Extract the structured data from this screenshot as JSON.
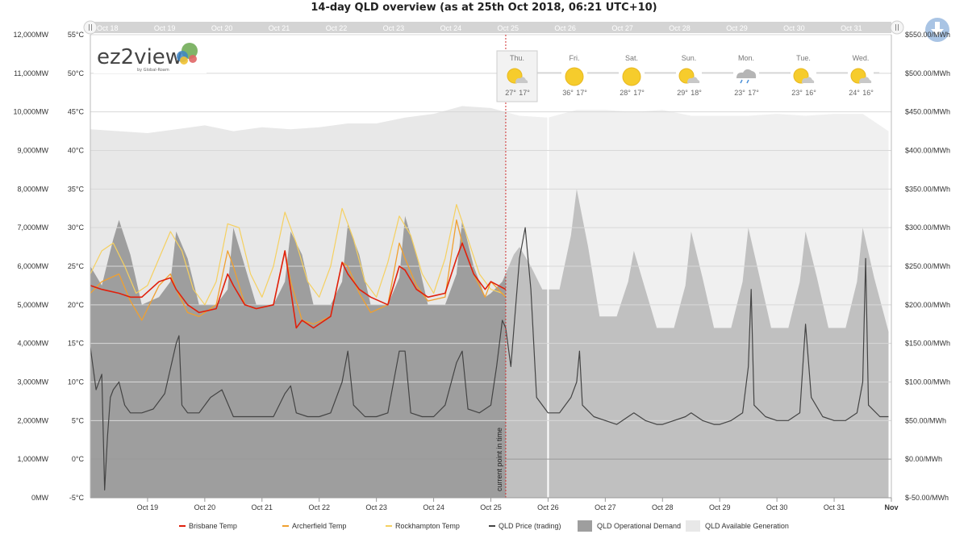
{
  "title": "14-day QLD overview (as at 25th Oct 2018, 06:21 UTC+10)",
  "logo": {
    "text": "ez2view",
    "sub": "by Global-Roam"
  },
  "marker_label": "current point in time",
  "colors": {
    "brisbane": "#e0200c",
    "archerfield": "#f0a030",
    "rockhampton": "#f5d060",
    "price": "#444444",
    "demand": "#9e9e9e",
    "available": "#e8e8e8"
  },
  "weather": [
    {
      "day": "Thu.",
      "icon": "sun-cloud-icon",
      "hi": "27°",
      "lo": "17°",
      "highlighted": true
    },
    {
      "day": "Fri.",
      "icon": "sun-icon",
      "hi": "36°",
      "lo": "17°"
    },
    {
      "day": "Sat.",
      "icon": "sun-icon",
      "hi": "28°",
      "lo": "17°"
    },
    {
      "day": "Sun.",
      "icon": "sun-cloud-icon",
      "hi": "29°",
      "lo": "18°"
    },
    {
      "day": "Mon.",
      "icon": "rain-cloud-icon",
      "hi": "23°",
      "lo": "17°"
    },
    {
      "day": "Tue.",
      "icon": "sun-cloud-icon",
      "hi": "23°",
      "lo": "16°"
    },
    {
      "day": "Wed.",
      "icon": "sun-cloud-icon",
      "hi": "24°",
      "lo": "16°"
    }
  ],
  "chart_data": {
    "type": "area",
    "title": "14-day QLD overview (as at 25th Oct 2018, 06:21 UTC+10)",
    "x_unit": "days (Oct 2018)",
    "x_range": [
      "Oct 18",
      "Nov 1"
    ],
    "x_ticks": [
      "Oct 19",
      "Oct 20",
      "Oct 21",
      "Oct 22",
      "Oct 23",
      "Oct 24",
      "Oct 25",
      "Oct 26",
      "Oct 27",
      "Oct 28",
      "Oct 29",
      "Oct 30",
      "Oct 31",
      "Nov"
    ],
    "nav_labels": [
      "Oct 18",
      "Oct 19",
      "Oct 20",
      "Oct 21",
      "Oct 22",
      "Oct 23",
      "Oct 24",
      "Oct 25",
      "Oct 26",
      "Oct 27",
      "Oct 28",
      "Oct 29",
      "Oct 30",
      "Oct 31"
    ],
    "axes": {
      "mw": {
        "range": [
          0,
          12000
        ],
        "ticks": [
          "0MW",
          "1,000MW",
          "2,000MW",
          "3,000MW",
          "4,000MW",
          "5,000MW",
          "6,000MW",
          "7,000MW",
          "8,000MW",
          "9,000MW",
          "10,000MW",
          "11,000MW",
          "12,000MW"
        ]
      },
      "temp": {
        "range": [
          -5,
          55
        ],
        "ticks": [
          "-5°C",
          "0°C",
          "5°C",
          "10°C",
          "15°C",
          "20°C",
          "25°C",
          "30°C",
          "35°C",
          "40°C",
          "45°C",
          "50°C",
          "55°C"
        ]
      },
      "price": {
        "range": [
          -50,
          550
        ],
        "ticks": [
          "$-50.00/MWh",
          "$0.00/MWh",
          "$50.00/MWh",
          "$100.00/MWh",
          "$150.00/MWh",
          "$200.00/MWh",
          "$250.00/MWh",
          "$300.00/MWh",
          "$350.00/MWh",
          "$400.00/MWh",
          "$450.00/MWh",
          "$500.00/MWh",
          "$550.00/MWh"
        ]
      }
    },
    "current_time_day": 25.26,
    "legend": [
      {
        "name": "Brisbane Temp",
        "key": "brisbane",
        "kind": "line"
      },
      {
        "name": "Archerfield Temp",
        "key": "archerfield",
        "kind": "line"
      },
      {
        "name": "Rockhampton Temp",
        "key": "rockhampton",
        "kind": "line"
      },
      {
        "name": "QLD Price (trading)",
        "key": "price",
        "kind": "line"
      },
      {
        "name": "QLD Operational Demand",
        "key": "demand",
        "kind": "box"
      },
      {
        "name": "QLD Available Generation",
        "key": "available",
        "kind": "box"
      }
    ],
    "series": [
      {
        "name": "QLD Available Generation",
        "unit": "MW",
        "x": [
          18.0,
          18.5,
          19.0,
          19.5,
          20.0,
          20.5,
          21.0,
          21.5,
          22.0,
          22.5,
          23.0,
          23.5,
          24.0,
          24.5,
          25.0,
          25.5,
          26.0,
          26.5,
          27.0,
          27.5,
          28.0,
          28.5,
          29.0,
          29.5,
          30.0,
          30.5,
          31.0,
          31.5,
          31.95
        ],
        "y": [
          9550,
          9500,
          9450,
          9550,
          9650,
          9500,
          9600,
          9550,
          9600,
          9700,
          9700,
          9850,
          9950,
          10150,
          10100,
          9900,
          9850,
          10050,
          10050,
          10000,
          10050,
          9900,
          9900,
          9900,
          9950,
          9900,
          9950,
          9950,
          9500
        ]
      },
      {
        "name": "QLD Operational Demand",
        "unit": "MW",
        "x": [
          18.0,
          18.2,
          18.4,
          18.5,
          18.7,
          18.9,
          19.2,
          19.4,
          19.5,
          19.7,
          19.9,
          20.2,
          20.4,
          20.5,
          20.7,
          20.9,
          21.2,
          21.4,
          21.5,
          21.7,
          21.9,
          22.2,
          22.4,
          22.5,
          22.7,
          22.9,
          23.2,
          23.4,
          23.5,
          23.7,
          23.9,
          24.2,
          24.4,
          24.5,
          24.7,
          24.9,
          25.0,
          25.2,
          25.4,
          25.5,
          25.7,
          25.9,
          26.2,
          26.4,
          26.5,
          26.7,
          26.9,
          27.2,
          27.4,
          27.5,
          27.7,
          27.9,
          28.2,
          28.4,
          28.5,
          28.7,
          28.9,
          29.2,
          29.4,
          29.5,
          29.7,
          29.9,
          30.2,
          30.4,
          30.5,
          30.7,
          30.9,
          31.2,
          31.4,
          31.5,
          31.7,
          31.95
        ],
        "y": [
          6000,
          5500,
          6700,
          7200,
          6300,
          5000,
          5200,
          5600,
          6900,
          6200,
          5000,
          5000,
          5400,
          7000,
          6000,
          5000,
          5000,
          5600,
          6900,
          6300,
          5000,
          5000,
          5600,
          7100,
          6300,
          5000,
          5000,
          5700,
          7300,
          6300,
          5000,
          5000,
          5800,
          7200,
          6000,
          5200,
          5300,
          5600,
          6300,
          6500,
          6000,
          5400,
          5400,
          6800,
          8000,
          6500,
          4700,
          4700,
          5600,
          6400,
          5400,
          4400,
          4400,
          5500,
          6900,
          5700,
          4400,
          4400,
          5600,
          7000,
          5700,
          4400,
          4400,
          5600,
          6900,
          5700,
          4400,
          4400,
          5600,
          7000,
          5700,
          4300
        ]
      },
      {
        "name": "Brisbane Temp",
        "unit": "°C",
        "x": [
          18.0,
          18.2,
          18.5,
          18.7,
          18.9,
          19.2,
          19.4,
          19.5,
          19.7,
          19.9,
          20.2,
          20.4,
          20.5,
          20.7,
          20.9,
          21.2,
          21.4,
          21.5,
          21.6,
          21.7,
          21.9,
          22.2,
          22.4,
          22.5,
          22.7,
          22.9,
          23.2,
          23.4,
          23.5,
          23.7,
          23.9,
          24.2,
          24.4,
          24.5,
          24.7,
          24.9,
          25.0,
          25.26
        ],
        "y": [
          22.5,
          22.0,
          21.5,
          21.0,
          21.0,
          23.0,
          23.5,
          22.0,
          20.0,
          19.0,
          19.5,
          24.0,
          22.5,
          20.0,
          19.5,
          20.0,
          27.0,
          22.0,
          17.0,
          18.0,
          17.0,
          18.5,
          25.5,
          24.0,
          22.0,
          21.0,
          20.0,
          25.0,
          24.5,
          22.0,
          21.0,
          21.5,
          26.0,
          28.0,
          24.0,
          22.0,
          23.0,
          22.0
        ]
      },
      {
        "name": "Archerfield Temp",
        "unit": "°C",
        "x": [
          18.0,
          18.2,
          18.5,
          18.7,
          18.9,
          19.2,
          19.4,
          19.5,
          19.7,
          19.9,
          20.2,
          20.4,
          20.5,
          20.7,
          20.9,
          21.2,
          21.4,
          21.5,
          21.7,
          21.9,
          22.2,
          22.4,
          22.5,
          22.7,
          22.9,
          23.2,
          23.4,
          23.5,
          23.7,
          23.9,
          24.2,
          24.4,
          24.5,
          24.7,
          24.9,
          25.0,
          25.26
        ],
        "y": [
          21.5,
          23.0,
          24.0,
          20.5,
          18.0,
          22.5,
          24.0,
          22.0,
          19.0,
          18.5,
          20.0,
          27.0,
          25.0,
          20.0,
          19.5,
          20.0,
          27.0,
          23.0,
          18.0,
          17.5,
          18.5,
          25.5,
          25.0,
          21.5,
          19.0,
          20.0,
          28.0,
          26.0,
          22.5,
          20.5,
          21.0,
          31.0,
          28.0,
          24.0,
          21.0,
          23.0,
          21.0
        ]
      },
      {
        "name": "Rockhampton Temp",
        "unit": "°C",
        "x": [
          18.0,
          18.2,
          18.4,
          18.6,
          18.8,
          19.0,
          19.2,
          19.4,
          19.6,
          19.8,
          20.0,
          20.2,
          20.4,
          20.6,
          20.8,
          21.0,
          21.2,
          21.4,
          21.6,
          21.8,
          22.0,
          22.2,
          22.4,
          22.6,
          22.8,
          23.0,
          23.2,
          23.4,
          23.6,
          23.8,
          24.0,
          24.2,
          24.4,
          24.6,
          24.8,
          25.0,
          25.2,
          25.26
        ],
        "y": [
          24.0,
          27.0,
          28.0,
          25.0,
          21.5,
          22.5,
          26.0,
          29.5,
          27.0,
          22.0,
          20.0,
          23.0,
          30.5,
          30.0,
          24.0,
          21.0,
          25.0,
          32.0,
          28.0,
          23.0,
          21.0,
          25.0,
          32.5,
          28.5,
          23.0,
          21.0,
          25.5,
          31.5,
          29.0,
          24.0,
          21.5,
          26.0,
          33.0,
          28.5,
          24.0,
          22.0,
          21.5,
          21.0
        ]
      },
      {
        "name": "QLD Price (trading)",
        "unit": "$/MWh",
        "x": [
          18.0,
          18.1,
          18.2,
          18.25,
          18.3,
          18.35,
          18.4,
          18.5,
          18.6,
          18.7,
          18.9,
          19.1,
          19.3,
          19.5,
          19.55,
          19.6,
          19.7,
          19.9,
          20.1,
          20.3,
          20.5,
          20.6,
          20.8,
          21.0,
          21.2,
          21.4,
          21.5,
          21.6,
          21.8,
          22.0,
          22.2,
          22.4,
          22.5,
          22.6,
          22.8,
          23.0,
          23.2,
          23.4,
          23.5,
          23.6,
          23.8,
          24.0,
          24.2,
          24.4,
          24.5,
          24.6,
          24.8,
          24.9,
          25.0,
          25.1,
          25.2,
          25.26,
          25.35,
          25.5,
          25.6,
          25.7,
          25.8,
          26.0,
          26.2,
          26.4,
          26.5,
          26.55,
          26.6,
          26.8,
          27.0,
          27.2,
          27.4,
          27.5,
          27.7,
          27.9,
          28.0,
          28.2,
          28.4,
          28.5,
          28.7,
          28.9,
          29.0,
          29.2,
          29.4,
          29.5,
          29.55,
          29.6,
          29.8,
          30.0,
          30.2,
          30.4,
          30.5,
          30.6,
          30.8,
          31.0,
          31.2,
          31.4,
          31.5,
          31.55,
          31.6,
          31.8,
          31.95
        ],
        "y": [
          145,
          90,
          110,
          -40,
          30,
          80,
          90,
          100,
          70,
          60,
          60,
          65,
          85,
          150,
          160,
          70,
          60,
          60,
          80,
          90,
          55,
          55,
          55,
          55,
          55,
          85,
          95,
          60,
          55,
          55,
          60,
          100,
          140,
          70,
          55,
          55,
          60,
          140,
          140,
          60,
          55,
          55,
          70,
          125,
          140,
          65,
          60,
          65,
          70,
          120,
          180,
          170,
          120,
          260,
          300,
          220,
          80,
          60,
          60,
          80,
          100,
          140,
          70,
          55,
          50,
          45,
          55,
          60,
          50,
          45,
          45,
          50,
          55,
          60,
          50,
          45,
          45,
          50,
          60,
          120,
          220,
          70,
          55,
          50,
          50,
          60,
          175,
          80,
          55,
          50,
          50,
          60,
          100,
          260,
          70,
          55,
          55
        ]
      }
    ]
  }
}
